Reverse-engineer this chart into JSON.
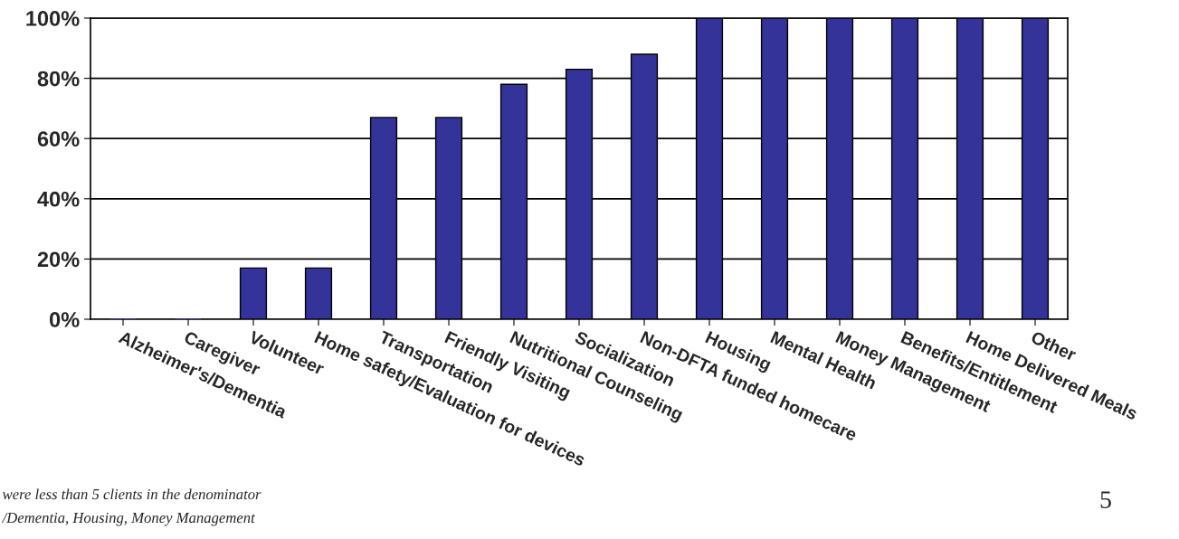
{
  "chart_data": {
    "type": "bar",
    "categories": [
      "Alzheimer's/Dementia",
      "Caregiver",
      "Volunteer",
      "Home safety/Evaluation for devices",
      "Transportation",
      "Friendly Visiting",
      "Nutritional Counseling",
      "Socialization",
      "Non-DFTA funded homecare",
      "Housing",
      "Mental Health",
      "Money Management",
      "Benefits/Entitlement",
      "Home Delivered Meals",
      "Other"
    ],
    "values": [
      0,
      0,
      17,
      17,
      67,
      67,
      78,
      83,
      88,
      100,
      100,
      100,
      100,
      100,
      100
    ],
    "color": "#333399",
    "ylim": [
      0,
      100
    ],
    "yticks": [
      {
        "value": 0,
        "label": "0%"
      },
      {
        "value": 20,
        "label": "20%"
      },
      {
        "value": 40,
        "label": "40%"
      },
      {
        "value": 60,
        "label": "60%"
      },
      {
        "value": 80,
        "label": "80%"
      },
      {
        "value": 100,
        "label": "100%"
      }
    ],
    "grid": "y",
    "annotations": [
      "were less than 5 clients in the denominator",
      "/Dementia, Housing, Money Management",
      "5"
    ]
  }
}
